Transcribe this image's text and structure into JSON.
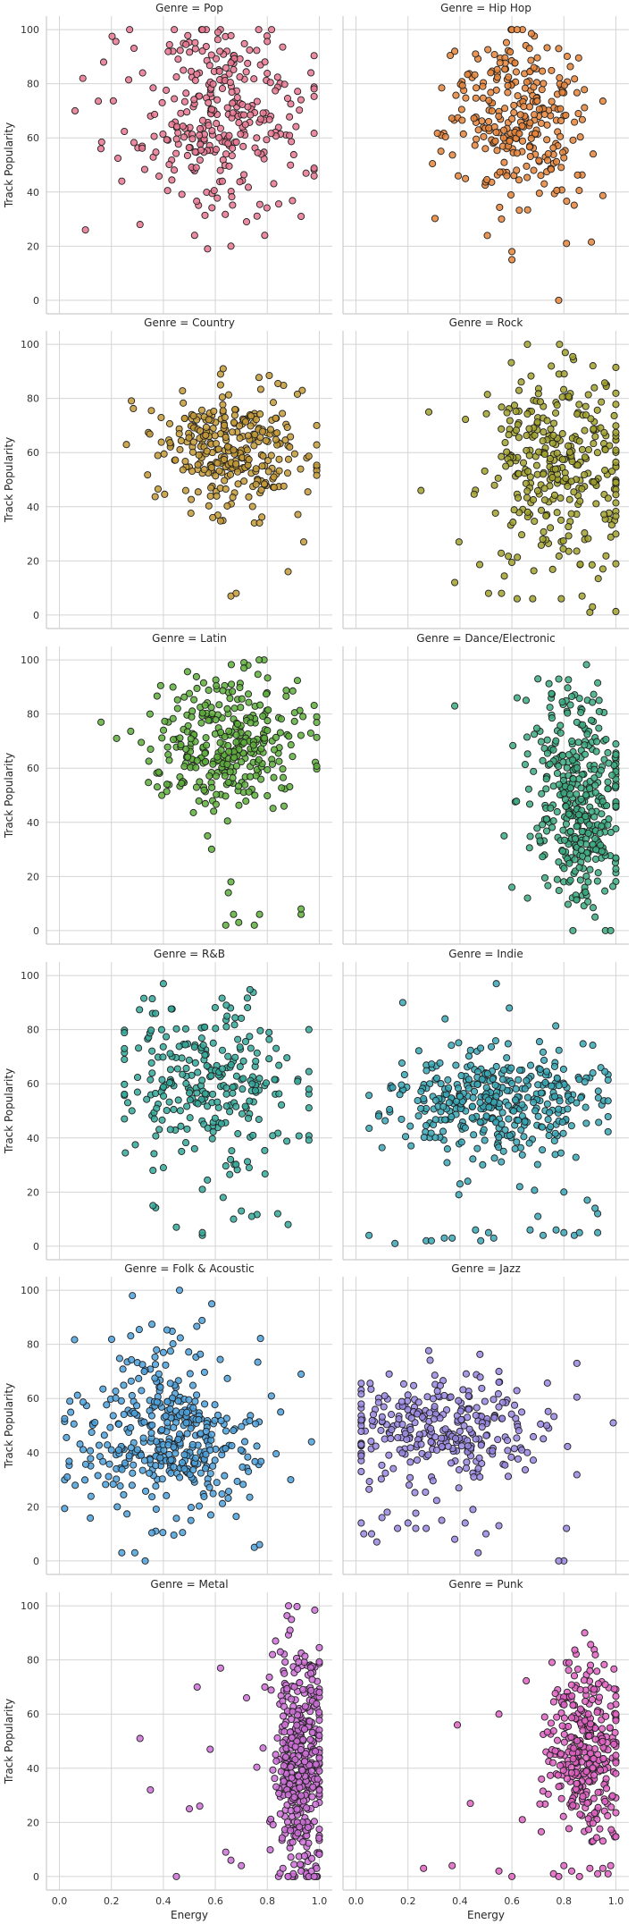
{
  "chart_data": {
    "type": "scatter",
    "xlabel": "Energy",
    "ylabel": "Track Popularity",
    "xlim": [
      -0.05,
      1.05
    ],
    "ylim": [
      -5,
      105
    ],
    "xticks": [
      0.0,
      0.2,
      0.4,
      0.6,
      0.8,
      1.0
    ],
    "yticks": [
      0,
      20,
      40,
      60,
      80,
      100
    ],
    "grid": true,
    "panels": [
      {
        "title": "Genre = Pop",
        "color": "#e8758f",
        "cx": 0.62,
        "sx": 0.17,
        "cy": 68,
        "sy": 17,
        "xmin": 0.08,
        "xmax": 0.98,
        "n": 300,
        "points": [
          [
            0.1,
            26
          ],
          [
            0.06,
            70
          ],
          [
            0.09,
            82
          ],
          [
            0.17,
            88
          ],
          [
            0.24,
            44
          ],
          [
            0.31,
            28
          ],
          [
            0.32,
            84
          ],
          [
            0.52,
            24
          ],
          [
            0.57,
            19
          ],
          [
            0.66,
            20
          ],
          [
            0.72,
            29
          ],
          [
            0.79,
            24
          ],
          [
            0.93,
            31
          ],
          [
            0.55,
            100
          ],
          [
            0.61,
            99
          ]
        ]
      },
      {
        "title": "Genre = Hip Hop",
        "color": "#e6843a",
        "cx": 0.62,
        "sx": 0.13,
        "cy": 67,
        "sy": 14,
        "xmin": 0.25,
        "xmax": 0.95,
        "n": 280,
        "points": [
          [
            0.6,
            18
          ],
          [
            0.6,
            15
          ],
          [
            0.78,
            0
          ],
          [
            0.81,
            21
          ],
          [
            0.56,
            30
          ],
          [
            0.62,
            100
          ],
          [
            0.38,
            92
          ],
          [
            0.46,
            91
          ],
          [
            0.78,
            93
          ]
        ]
      },
      {
        "title": "Genre = Country",
        "color": "#c49a36",
        "cx": 0.66,
        "sx": 0.14,
        "cy": 62,
        "sy": 10,
        "xmin": 0.2,
        "xmax": 0.99,
        "n": 300,
        "points": [
          [
            0.66,
            7
          ],
          [
            0.68,
            8
          ],
          [
            0.88,
            16
          ],
          [
            0.94,
            27
          ],
          [
            0.75,
            34
          ],
          [
            0.77,
            34
          ],
          [
            0.59,
            36
          ],
          [
            0.62,
            89
          ],
          [
            0.63,
            91
          ],
          [
            0.62,
            85
          ]
        ]
      },
      {
        "title": "Genre = Rock",
        "color": "#a1a12c",
        "cx": 0.8,
        "sx": 0.15,
        "cy": 54,
        "sy": 17,
        "xmin": 0.25,
        "xmax": 1.0,
        "n": 320,
        "points": [
          [
            0.25,
            46
          ],
          [
            0.28,
            75
          ],
          [
            0.38,
            12
          ],
          [
            0.51,
            8
          ],
          [
            0.56,
            8
          ],
          [
            0.62,
            6
          ],
          [
            0.68,
            6
          ],
          [
            0.79,
            6
          ],
          [
            0.87,
            7
          ],
          [
            0.9,
            1
          ],
          [
            0.91,
            3
          ],
          [
            0.95,
            17
          ]
        ]
      },
      {
        "title": "Genre = Latin",
        "color": "#5daf3a",
        "cx": 0.65,
        "sx": 0.14,
        "cy": 70,
        "sy": 12,
        "xmin": 0.15,
        "xmax": 0.99,
        "n": 320,
        "points": [
          [
            0.16,
            77
          ],
          [
            0.22,
            71
          ],
          [
            0.57,
            35
          ],
          [
            0.65,
            14
          ],
          [
            0.66,
            18
          ],
          [
            0.64,
            2
          ],
          [
            0.67,
            6
          ],
          [
            0.69,
            3
          ],
          [
            0.75,
            2
          ],
          [
            0.77,
            6
          ],
          [
            0.93,
            6
          ],
          [
            0.93,
            8
          ],
          [
            0.71,
            99
          ],
          [
            0.71,
            97
          ]
        ]
      },
      {
        "title": "Genre = Dance/Electronic",
        "color": "#3bab80",
        "cx": 0.85,
        "sx": 0.09,
        "cy": 48,
        "sy": 20,
        "xmin": 0.35,
        "xmax": 1.0,
        "n": 380,
        "points": [
          [
            0.38,
            83
          ],
          [
            0.57,
            35
          ],
          [
            0.6,
            16
          ],
          [
            0.66,
            12
          ],
          [
            0.7,
            93
          ],
          [
            0.62,
            86
          ],
          [
            0.96,
            0
          ],
          [
            0.98,
            0
          ],
          [
            0.92,
            5
          ]
        ]
      },
      {
        "title": "Genre = R&B",
        "color": "#33a99a",
        "cx": 0.58,
        "sx": 0.17,
        "cy": 62,
        "sy": 14,
        "xmin": 0.25,
        "xmax": 0.96,
        "n": 260,
        "points": [
          [
            0.36,
            15
          ],
          [
            0.36,
            28
          ],
          [
            0.4,
            29
          ],
          [
            0.45,
            7
          ],
          [
            0.55,
            4
          ],
          [
            0.55,
            5
          ],
          [
            0.55,
            21
          ],
          [
            0.63,
            18
          ],
          [
            0.67,
            10
          ],
          [
            0.73,
            29
          ],
          [
            0.7,
            13
          ],
          [
            0.74,
            11
          ],
          [
            0.84,
            12
          ],
          [
            0.88,
            8
          ],
          [
            0.4,
            97
          ],
          [
            0.37,
            86
          ],
          [
            0.47,
            35
          ],
          [
            0.52,
            36
          ]
        ]
      },
      {
        "title": "Genre = Indie",
        "color": "#37a7b5",
        "cx": 0.55,
        "sx": 0.2,
        "cy": 53,
        "sy": 10,
        "xmin": 0.05,
        "xmax": 0.97,
        "n": 380,
        "points": [
          [
            0.05,
            4
          ],
          [
            0.15,
            1
          ],
          [
            0.27,
            2
          ],
          [
            0.29,
            2
          ],
          [
            0.34,
            3
          ],
          [
            0.37,
            3
          ],
          [
            0.4,
            23
          ],
          [
            0.43,
            24
          ],
          [
            0.46,
            6
          ],
          [
            0.48,
            2
          ],
          [
            0.51,
            5
          ],
          [
            0.53,
            3
          ],
          [
            0.63,
            22
          ],
          [
            0.67,
            6
          ],
          [
            0.7,
            11
          ],
          [
            0.72,
            4
          ],
          [
            0.77,
            6
          ],
          [
            0.8,
            5
          ],
          [
            0.84,
            4
          ],
          [
            0.86,
            5
          ],
          [
            0.89,
            17
          ],
          [
            0.93,
            5
          ],
          [
            0.93,
            12
          ],
          [
            0.92,
            14
          ],
          [
            0.8,
            20
          ],
          [
            0.18,
            90
          ],
          [
            0.54,
            97
          ],
          [
            0.59,
            88
          ]
        ]
      },
      {
        "title": "Genre = Folk & Acoustic",
        "color": "#4ca1dc",
        "cx": 0.42,
        "sx": 0.17,
        "cy": 47,
        "sy": 15,
        "xmin": 0.02,
        "xmax": 0.96,
        "n": 400,
        "points": [
          [
            0.03,
            31
          ],
          [
            0.04,
            59
          ],
          [
            0.33,
            0
          ],
          [
            0.29,
            3
          ],
          [
            0.24,
            3
          ],
          [
            0.75,
            5
          ],
          [
            0.77,
            6
          ],
          [
            0.89,
            30
          ],
          [
            0.93,
            69
          ],
          [
            0.97,
            44
          ],
          [
            0.4,
            77
          ]
        ]
      },
      {
        "title": "Genre = Jazz",
        "color": "#9986e0",
        "cx": 0.32,
        "sx": 0.2,
        "cy": 48,
        "sy": 9,
        "xmin": 0.02,
        "xmax": 0.85,
        "n": 300,
        "points": [
          [
            0.02,
            14
          ],
          [
            0.03,
            10
          ],
          [
            0.06,
            10
          ],
          [
            0.08,
            7
          ],
          [
            0.1,
            16
          ],
          [
            0.12,
            18
          ],
          [
            0.16,
            12
          ],
          [
            0.2,
            14
          ],
          [
            0.23,
            12
          ],
          [
            0.27,
            12
          ],
          [
            0.33,
            15
          ],
          [
            0.38,
            8
          ],
          [
            0.42,
            14
          ],
          [
            0.45,
            19
          ],
          [
            0.47,
            3
          ],
          [
            0.5,
            10
          ],
          [
            0.55,
            13
          ],
          [
            0.8,
            0
          ],
          [
            0.78,
            0
          ],
          [
            0.81,
            12
          ],
          [
            0.85,
            73
          ],
          [
            0.99,
            51
          ],
          [
            0.55,
            70
          ],
          [
            0.55,
            66
          ]
        ]
      },
      {
        "title": "Genre = Metal",
        "color": "#ce70d8",
        "cx": 0.92,
        "sx": 0.05,
        "cy": 45,
        "sy": 22,
        "xmin": 0.6,
        "xmax": 1.0,
        "n": 420,
        "points": [
          [
            0.31,
            51
          ],
          [
            0.35,
            32
          ],
          [
            0.45,
            0
          ],
          [
            0.5,
            25
          ],
          [
            0.54,
            26
          ],
          [
            0.53,
            70
          ],
          [
            0.58,
            47
          ],
          [
            0.62,
            77
          ],
          [
            0.64,
            9
          ],
          [
            0.66,
            6
          ],
          [
            0.72,
            66
          ],
          [
            0.7,
            4
          ],
          [
            0.95,
            1
          ],
          [
            0.96,
            0
          ],
          [
            0.97,
            2
          ],
          [
            0.98,
            0
          ],
          [
            0.99,
            3
          ],
          [
            0.93,
            2
          ],
          [
            0.9,
            1
          ],
          [
            0.88,
            0
          ],
          [
            0.86,
            3
          ],
          [
            0.85,
            83
          ],
          [
            0.82,
            82
          ]
        ]
      },
      {
        "title": "Genre = Punk",
        "color": "#e062c3",
        "cx": 0.88,
        "sx": 0.07,
        "cy": 47,
        "sy": 17,
        "xmin": 0.55,
        "xmax": 1.0,
        "n": 340,
        "points": [
          [
            0.26,
            3
          ],
          [
            0.37,
            4
          ],
          [
            0.39,
            56
          ],
          [
            0.44,
            27
          ],
          [
            0.55,
            60
          ],
          [
            0.55,
            2
          ],
          [
            0.6,
            0
          ],
          [
            0.64,
            21
          ],
          [
            0.76,
            1
          ],
          [
            0.78,
            0
          ],
          [
            0.8,
            4
          ],
          [
            0.83,
            2
          ],
          [
            0.86,
            0
          ],
          [
            0.9,
            3
          ],
          [
            0.93,
            1
          ],
          [
            0.95,
            3
          ],
          [
            0.97,
            1
          ],
          [
            0.98,
            4
          ],
          [
            0.82,
            79
          ],
          [
            0.9,
            76
          ]
        ]
      }
    ]
  }
}
